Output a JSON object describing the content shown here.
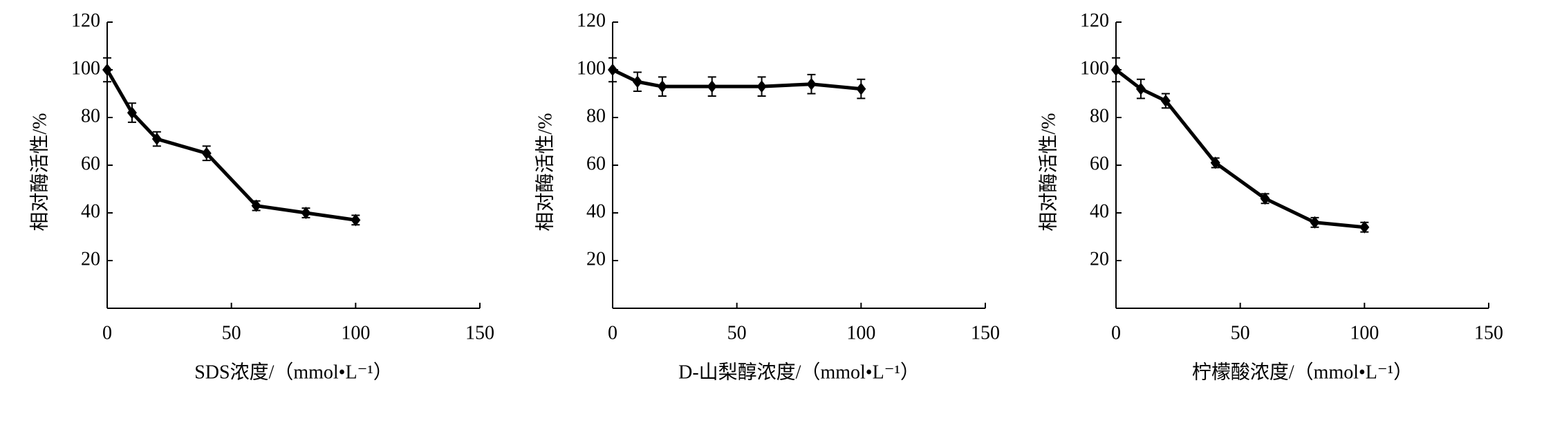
{
  "chart_data": [
    {
      "type": "line",
      "x_label": "SDS浓度/（mmol•L⁻¹）",
      "y_label": "相对酶活性/%",
      "x": [
        0,
        10,
        20,
        40,
        60,
        80,
        100
      ],
      "series": [
        {
          "color": "#000000",
          "values": [
            100,
            82,
            71,
            65,
            43,
            40,
            37
          ],
          "errors": [
            5,
            4,
            3,
            3,
            2,
            2,
            2
          ]
        }
      ],
      "xlim": [
        0,
        150
      ],
      "xticks": [
        0,
        50,
        100,
        150
      ],
      "ylim": [
        0,
        120
      ],
      "yticks": [
        20,
        40,
        60,
        80,
        100,
        120
      ]
    },
    {
      "type": "line",
      "x_label": "D-山梨醇浓度/（mmol•L⁻¹）",
      "y_label": "相对酶活性/%",
      "x": [
        0,
        10,
        20,
        40,
        60,
        80,
        100
      ],
      "series": [
        {
          "color": "#000000",
          "values": [
            100,
            95,
            93,
            93,
            93,
            94,
            92
          ],
          "errors": [
            5,
            4,
            4,
            4,
            4,
            4,
            4
          ]
        }
      ],
      "xlim": [
        0,
        150
      ],
      "xticks": [
        0,
        50,
        100,
        150
      ],
      "ylim": [
        0,
        120
      ],
      "yticks": [
        20,
        40,
        60,
        80,
        100,
        120
      ]
    },
    {
      "type": "line",
      "x_label": "柠檬酸浓度/（mmol•L⁻¹）",
      "y_label": "相对酶活性/%",
      "x": [
        0,
        10,
        20,
        40,
        60,
        80,
        100
      ],
      "series": [
        {
          "color": "#000000",
          "values": [
            100,
            92,
            87,
            61,
            46,
            36,
            34
          ],
          "errors": [
            5,
            4,
            3,
            2,
            2,
            2,
            2
          ]
        }
      ],
      "xlim": [
        0,
        150
      ],
      "xticks": [
        0,
        50,
        100,
        150
      ],
      "ylim": [
        0,
        120
      ],
      "yticks": [
        20,
        40,
        60,
        80,
        100,
        120
      ]
    }
  ]
}
